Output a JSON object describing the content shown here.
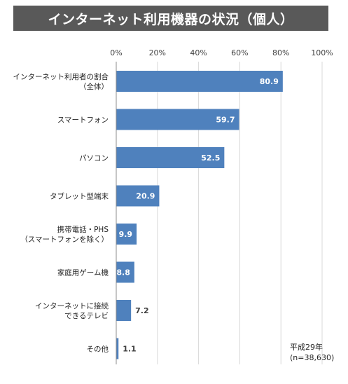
{
  "title": "インターネット利用機器の状況（個人）",
  "note": {
    "line1": "平成29年",
    "line2": "(n=38,630)"
  },
  "chart_data": {
    "type": "bar",
    "orientation": "horizontal",
    "title": "インターネット利用機器の状況（個人）",
    "xlim": [
      0,
      100
    ],
    "ticks": [
      "0%",
      "20%",
      "40%",
      "60%",
      "80%",
      "100%"
    ],
    "grid": true,
    "bar_color": "#4f81bd",
    "categories": [
      [
        "インターネット利用者の割合",
        "（全体）"
      ],
      [
        "スマートフォン"
      ],
      [
        "パソコン"
      ],
      [
        "タブレット型端末"
      ],
      [
        "携帯電話・PHS",
        "（スマートフォンを除く）"
      ],
      [
        "家庭用ゲーム機"
      ],
      [
        "インターネットに接続",
        "できるテレビ"
      ],
      [
        "その他"
      ]
    ],
    "values": [
      80.9,
      59.7,
      52.5,
      20.9,
      9.9,
      8.8,
      7.2,
      1.1
    ],
    "value_labels": [
      "80.9",
      "59.7",
      "52.5",
      "20.9",
      "9.9",
      "8.8",
      "7.2",
      "1.1"
    ]
  }
}
